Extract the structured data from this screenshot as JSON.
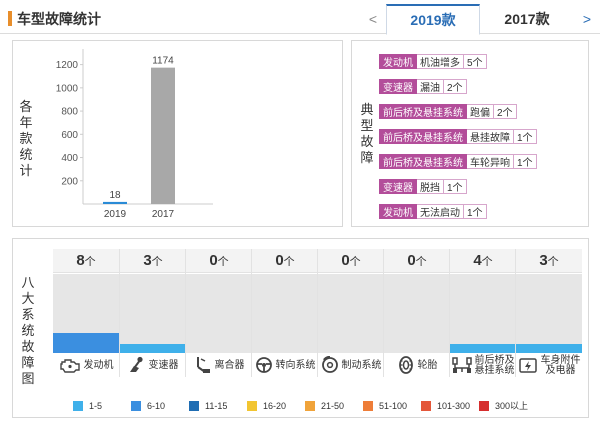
{
  "header": {
    "title": "车型故障统计",
    "tabs": [
      "2019款",
      "2017款"
    ],
    "active_tab": "2019款",
    "prev_arrow": "<",
    "next_arrow": ">"
  },
  "year_chart": {
    "ylabel_chars": [
      "各",
      "年",
      "款",
      "统",
      "计"
    ],
    "colors": {
      "2019": "#2a8bd6",
      "2017": "#a8a8a8"
    }
  },
  "chart_data": {
    "type": "bar",
    "categories": [
      "2019",
      "2017"
    ],
    "values": [
      18,
      1174
    ],
    "ylim": [
      0,
      1300
    ],
    "yticks": [
      200,
      400,
      600,
      800,
      1000,
      1200
    ],
    "ytick_labels": [
      "200",
      "400",
      "600",
      "800",
      "1000",
      "1200"
    ],
    "data_labels": [
      "18",
      "1174"
    ],
    "grid": false
  },
  "typical_faults": {
    "label_chars": [
      "典",
      "型",
      "故",
      "障"
    ],
    "items": [
      {
        "category": "发动机",
        "symptom": "机油增多",
        "count": "5个"
      },
      {
        "category": "变速器",
        "symptom": "漏油",
        "count": "2个"
      },
      {
        "category": "前后桥及悬挂系统",
        "symptom": "跑偏",
        "count": "2个"
      },
      {
        "category": "前后桥及悬挂系统",
        "symptom": "悬挂故障",
        "count": "1个"
      },
      {
        "category": "前后桥及悬挂系统",
        "symptom": "车轮异响",
        "count": "1个"
      },
      {
        "category": "变速器",
        "symptom": "脱挡",
        "count": "1个"
      },
      {
        "category": "发动机",
        "symptom": "无法启动",
        "count": "1个"
      }
    ]
  },
  "systems": {
    "label_chars": [
      "八",
      "大",
      "系",
      "统",
      "故",
      "障",
      "图"
    ],
    "unit": "个",
    "items": [
      {
        "count": "8",
        "label1": "发动机",
        "label2": "",
        "icon": "engine-icon",
        "level": 0.25,
        "color": "#3b8fe0"
      },
      {
        "count": "3",
        "label1": "变速器",
        "label2": "",
        "icon": "gear-shift-icon",
        "level": 0.11,
        "color": "#3fb0ea"
      },
      {
        "count": "0",
        "label1": "离合器",
        "label2": "",
        "icon": "clutch-pedal-icon",
        "level": 0,
        "color": "#3fb0ea"
      },
      {
        "count": "0",
        "label1": "转向系统",
        "label2": "",
        "icon": "steering-wheel-icon",
        "level": 0,
        "color": "#3fb0ea"
      },
      {
        "count": "0",
        "label1": "制动系统",
        "label2": "",
        "icon": "brake-disc-icon",
        "level": 0,
        "color": "#3fb0ea"
      },
      {
        "count": "0",
        "label1": "轮胎",
        "label2": "",
        "icon": "tire-icon",
        "level": 0,
        "color": "#3fb0ea"
      },
      {
        "count": "4",
        "label1": "前后桥及",
        "label2": "悬挂系统",
        "icon": "axle-suspension-icon",
        "level": 0.11,
        "color": "#3fb0ea"
      },
      {
        "count": "3",
        "label1": "车身附件",
        "label2": "及电器",
        "icon": "car-electrics-icon",
        "level": 0.11,
        "color": "#3fb0ea"
      }
    ]
  },
  "legend": [
    {
      "label": "1-5",
      "color": "#3fb0ea"
    },
    {
      "label": "6-10",
      "color": "#3b8fe0"
    },
    {
      "label": "11-15",
      "color": "#1f6db3"
    },
    {
      "label": "16-20",
      "color": "#f2c531"
    },
    {
      "label": "21-50",
      "color": "#f0a33a"
    },
    {
      "label": "51-100",
      "color": "#ee7d38"
    },
    {
      "label": "101-300",
      "color": "#e4573a"
    },
    {
      "label": "300以上",
      "color": "#d62e2e"
    }
  ]
}
